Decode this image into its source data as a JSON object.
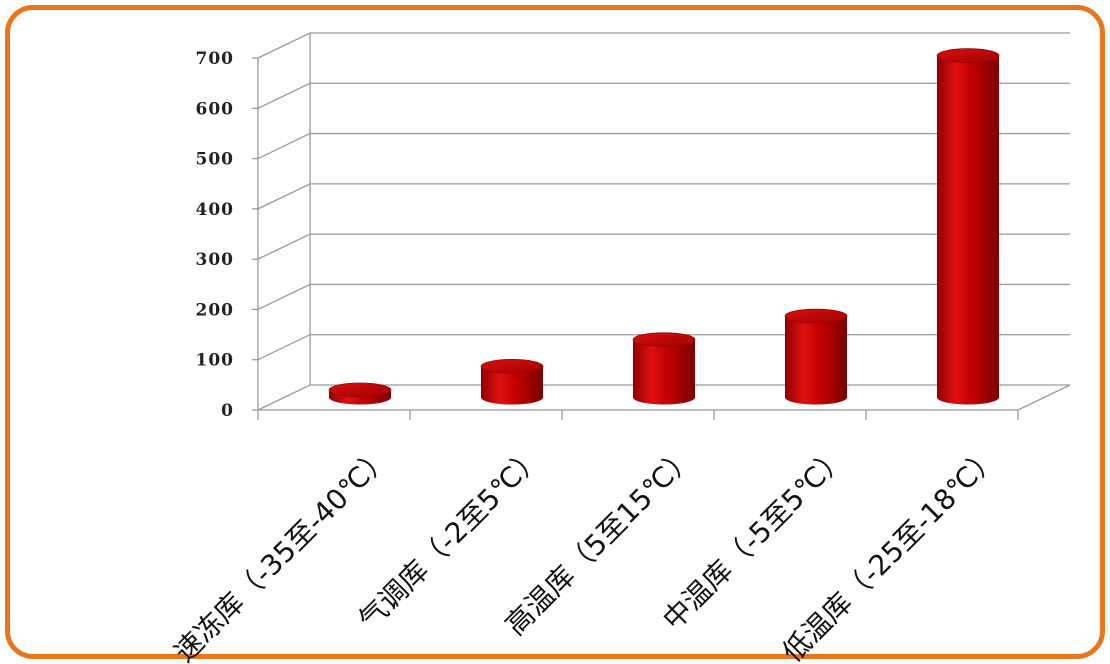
{
  "chart_data": {
    "type": "bar",
    "title": "",
    "xlabel": "",
    "ylabel": "",
    "ylim": [
      0,
      700
    ],
    "yticks": [
      "0",
      "100",
      "200",
      "300",
      "400",
      "500",
      "600",
      "700"
    ],
    "categories": [
      "速冻库（-35至-40℃）",
      "气调库（-2至5℃）",
      "高温库（5至15℃）",
      "中温库（-5至5℃）",
      "低温库（-25至-18℃）"
    ],
    "values": [
      15,
      62,
      115,
      162,
      680
    ],
    "grid": true,
    "legend": "none",
    "bar_color": "#cc0000",
    "bar_style": "3d-cylinder"
  },
  "frame_color": "#e8761d"
}
